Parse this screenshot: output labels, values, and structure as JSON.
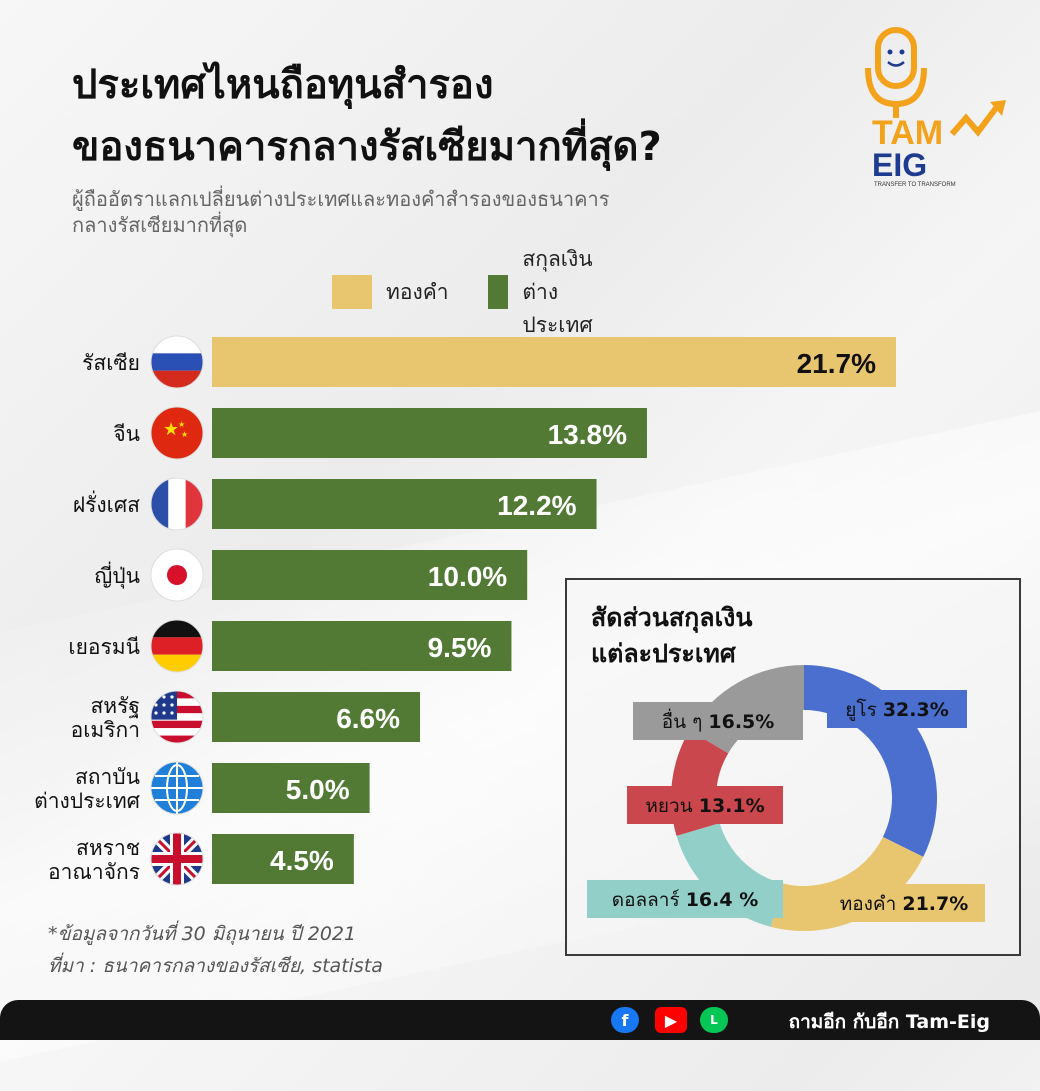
{
  "title_line1": "ประเทศไหนถือทุนสำรอง",
  "title_line2": "ของธนาคารกลางรัสเซียมากที่สุด?",
  "subtitle": "ผู้ถืออัตราแลกเปลี่ยนต่างประเทศและทองคำสำรองของธนาคารกลางรัสเซียมากที่สุด",
  "logo": {
    "line1": "TAM",
    "line2": "EIG",
    "tagline": "TRANSFER TO TRANSFORM"
  },
  "colors": {
    "gold": "#e8c66f",
    "green": "#527a35",
    "euro": "#4a6fce",
    "yuan": "#c9474d",
    "dollar": "#93cfc9",
    "other": "#9a9a9a"
  },
  "chart_data": [
    {
      "type": "bar",
      "orientation": "horizontal",
      "categories": [
        "รัสเซีย",
        "จีน",
        "ฝรั่งเศส",
        "ญี่ปุ่น",
        "เยอรมนี",
        "สหรัฐ อเมริกา",
        "สถาบัน ต่างประเทศ",
        "สหราช อาณาจักร"
      ],
      "category_lines": [
        [
          "รัสเซีย"
        ],
        [
          "จีน"
        ],
        [
          "ฝรั่งเศส"
        ],
        [
          "ญี่ปุ่น"
        ],
        [
          "เยอรมนี"
        ],
        [
          "สหรัฐ",
          "อเมริกา"
        ],
        [
          "สถาบัน",
          "ต่างประเทศ"
        ],
        [
          "สหราช",
          "อาณาจักร"
        ]
      ],
      "flags": [
        "russia-flag-icon",
        "china-flag-icon",
        "france-flag-icon",
        "japan-flag-icon",
        "germany-flag-icon",
        "usa-flag-icon",
        "globe-icon",
        "uk-flag-icon"
      ],
      "values": [
        21.7,
        13.8,
        12.2,
        10.0,
        9.5,
        6.6,
        5.0,
        4.5
      ],
      "labels": [
        "21.7%",
        "13.8%",
        "12.2%",
        "10.0%",
        "9.5%",
        "6.6%",
        "5.0%",
        "4.5%"
      ],
      "bar_types": [
        "gold",
        "currency",
        "currency",
        "currency",
        "currency",
        "currency",
        "currency",
        "currency"
      ],
      "legend": [
        {
          "name": "ทองคำ",
          "color": "#e8c66f"
        },
        {
          "name": "สกุลเงินต่างประเทศ",
          "color": "#527a35"
        }
      ],
      "xlim": [
        0,
        22
      ]
    },
    {
      "type": "pie",
      "donut": true,
      "title": "สัดส่วนสกุลเงินแต่ละประเทศ",
      "title_lines": [
        "สัดส่วนสกุลเงิน",
        "แต่ละประเทศ"
      ],
      "slices": [
        {
          "name": "ยูโร",
          "value": 32.3,
          "label": "32.3%",
          "color": "#4a6fce"
        },
        {
          "name": "ทองคำ",
          "value": 21.7,
          "label": "21.7%",
          "color": "#e8c66f"
        },
        {
          "name": "ดอลลาร์",
          "value": 16.4,
          "label": "16.4 %",
          "color": "#93cfc9"
        },
        {
          "name": "หยวน",
          "value": 13.1,
          "label": "13.1%",
          "color": "#c9474d"
        },
        {
          "name": "อื่น ๆ",
          "value": 16.5,
          "label": "16.5%",
          "color": "#9a9a9a"
        }
      ]
    }
  ],
  "footnote_line1": "*ข้อมูลจากวันที่ 30 มิถุนายน ปี 2021",
  "footnote_line2": "ที่มา : ธนาคารกลางของรัสเซีย, statista",
  "footer": {
    "brand": "ถามอีก กับอีก Tam-Eig"
  }
}
